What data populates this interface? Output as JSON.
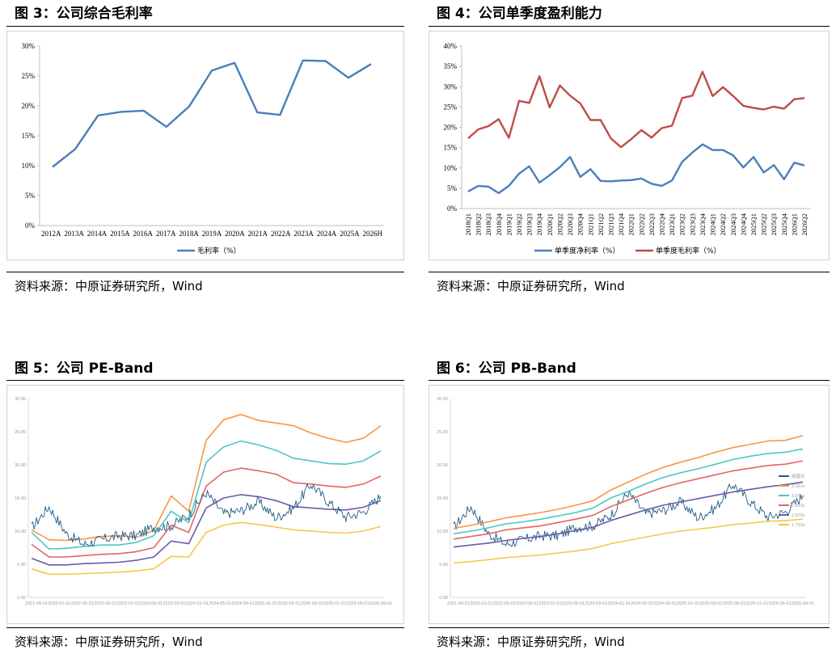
{
  "colors": {
    "blue": "#4a7ebb",
    "red": "#be4b48",
    "orange": "#f79646",
    "cyan": "#4bc7c4",
    "coral": "#e36566",
    "purple": "#6a5aa8",
    "yellow": "#f5c84c",
    "price": "#1f5d86"
  },
  "panels": [
    {
      "title": "图 3：公司综合毛利率",
      "source": "资料来源：中原证券研究所，Wind"
    },
    {
      "title": "图 4：公司单季度盈利能力",
      "source": "资料来源：中原证券研究所，Wind"
    },
    {
      "title": "图 5：公司 PE-Band",
      "source": "资料来源：中原证券研究所，Wind"
    },
    {
      "title": "图 6：公司 PB-Band",
      "source": "资料来源：中原证券研究所，Wind"
    }
  ],
  "chart_data": [
    {
      "type": "line",
      "title": "",
      "categories": [
        "2012A",
        "2013A",
        "2014A",
        "2015A",
        "2016A",
        "2017A",
        "2018A",
        "2019A",
        "2020A",
        "2021A",
        "2022A",
        "2023A",
        "2024A",
        "2025A",
        "2026H"
      ],
      "series": [
        {
          "name": "毛利率（%）",
          "values": [
            9.8,
            12.8,
            18.4,
            19.0,
            19.2,
            16.5,
            19.9,
            25.9,
            27.2,
            18.9,
            18.5,
            27.6,
            27.5,
            24.7,
            27.0
          ]
        }
      ],
      "yticks": [
        "0%",
        "5%",
        "10%",
        "15%",
        "20%",
        "25%",
        "30%"
      ],
      "ylim": [
        0,
        30
      ],
      "grid": false,
      "legend": "bottom"
    },
    {
      "type": "line",
      "title": "",
      "categories": [
        "2018Q1",
        "2018Q2",
        "2018Q3",
        "2018Q4",
        "2019Q1",
        "2019Q2",
        "2019Q3",
        "2019Q4",
        "2020Q1",
        "2020Q2",
        "2020Q3",
        "2020Q4",
        "2021Q1",
        "2021Q2",
        "2021Q3",
        "2021Q4",
        "2022Q1",
        "2022Q2",
        "2022Q3",
        "2022Q4",
        "2023Q1",
        "2023Q2",
        "2023Q3",
        "2023Q4",
        "2024Q1",
        "2024Q2",
        "2024Q3",
        "2024Q4",
        "2025Q1",
        "2025Q2",
        "2025Q3",
        "2025Q4",
        "2026Q1",
        "2026Q2"
      ],
      "series": [
        {
          "name": "单季度净利率（%）",
          "values": [
            4.2,
            5.6,
            5.4,
            3.8,
            5.6,
            8.6,
            10.4,
            6.4,
            8.2,
            10.2,
            12.7,
            7.8,
            9.7,
            6.8,
            6.7,
            6.9,
            7.0,
            7.4,
            6.1,
            5.6,
            6.9,
            11.5,
            13.8,
            15.8,
            14.4,
            14.4,
            13.1,
            10.1,
            12.7,
            8.9,
            10.7,
            7.2,
            11.3,
            10.6
          ]
        },
        {
          "name": "单季度毛利率（%）",
          "values": [
            17.3,
            19.5,
            20.3,
            22.0,
            17.4,
            26.5,
            26.0,
            32.6,
            24.9,
            30.3,
            27.8,
            25.9,
            21.8,
            21.8,
            17.3,
            15.1,
            17.1,
            19.3,
            17.5,
            19.8,
            20.4,
            27.2,
            27.8,
            33.7,
            27.7,
            29.9,
            27.7,
            25.3,
            24.8,
            24.4,
            25.1,
            24.6,
            26.9,
            27.2
          ]
        }
      ],
      "yticks": [
        "0%",
        "5%",
        "10%",
        "15%",
        "20%",
        "25%",
        "30%",
        "35%",
        "40%"
      ],
      "ylim": [
        0,
        40
      ],
      "grid": false,
      "legend": "bottom"
    },
    {
      "type": "line",
      "title": "",
      "xticks": [
        "2021-09-01",
        "2022-01-01",
        "2022-05-01",
        "2022-09-01",
        "2023-01-01",
        "2023-05-01",
        "2023-09-01",
        "2024-01-01",
        "2024-05-01",
        "2024-09-01",
        "2025-01-01",
        "2025-05-01",
        "2025-09-01",
        "2026-01-01",
        "2026-05-01",
        "2026-09-01"
      ],
      "yticks": [
        "0.00",
        "5.00",
        "10.00",
        "15.00",
        "20.00",
        "25.00",
        "30.00"
      ],
      "ylim": [
        0,
        30
      ],
      "legend": "none",
      "series": [
        {
          "name": "",
          "values": [
            10.2,
            8.7,
            8.6,
            8.8,
            9.2,
            9.3,
            9.1,
            10.1,
            15.3,
            13.0,
            23.7,
            26.8,
            27.6,
            26.7,
            26.3,
            25.9,
            24.8,
            24.0,
            23.4,
            24.0,
            25.9
          ]
        },
        {
          "name": "",
          "values": [
            9.8,
            7.3,
            7.4,
            7.7,
            7.9,
            7.9,
            8.3,
            9.3,
            13.0,
            11.3,
            20.4,
            22.7,
            23.6,
            23.0,
            22.2,
            21.0,
            20.6,
            20.2,
            20.1,
            20.6,
            22.1
          ]
        },
        {
          "name": "",
          "values": [
            8.0,
            6.1,
            6.1,
            6.3,
            6.5,
            6.6,
            6.9,
            7.5,
            10.9,
            9.8,
            16.8,
            18.9,
            19.5,
            19.1,
            18.6,
            17.3,
            17.1,
            16.8,
            16.6,
            17.1,
            18.3
          ]
        },
        {
          "name": "",
          "values": [
            5.9,
            4.9,
            4.9,
            5.1,
            5.2,
            5.3,
            5.6,
            6.1,
            8.5,
            8.1,
            13.5,
            15.0,
            15.5,
            15.2,
            14.6,
            13.7,
            13.5,
            13.3,
            13.2,
            13.6,
            14.6
          ]
        },
        {
          "name": "",
          "values": [
            4.3,
            3.5,
            3.5,
            3.6,
            3.7,
            3.8,
            4.0,
            4.3,
            6.2,
            6.1,
            9.8,
            10.9,
            11.3,
            11.0,
            10.6,
            10.2,
            10.0,
            9.8,
            9.7,
            10.0,
            10.7
          ]
        },
        {
          "name": "",
          "values": [
            10.5,
            13.7,
            9.6,
            8.0,
            8.7,
            9.3,
            9.3,
            10.6,
            10.8,
            12.4,
            15.8,
            12.6,
            13.1,
            14.4,
            12.0,
            13.5,
            17.1,
            14.4,
            12.1,
            12.9,
            15.3
          ]
        }
      ]
    },
    {
      "type": "line",
      "title": "",
      "xticks": [
        "2021-09-01",
        "2022-01-01",
        "2022-05-01",
        "2022-09-01",
        "2023-01-01",
        "2023-05-01",
        "2023-09-01",
        "2024-01-01",
        "2024-05-01",
        "2024-09-01",
        "2025-01-01",
        "2025-05-01",
        "2025-09-01",
        "2026-01-01",
        "2026-05-01",
        "2026-09-01"
      ],
      "yticks": [
        "0.00",
        "5.00",
        "10.00",
        "15.00",
        "20.00",
        "25.00",
        "30.00"
      ],
      "ylim": [
        0,
        30
      ],
      "legend": "right",
      "legend_entries": [
        "收盘价",
        "3.321x",
        "3.071x",
        "2.821x",
        "2.572x",
        "1.722x"
      ],
      "series": [
        {
          "name": "收盘价",
          "values": [
            10.5,
            13.7,
            9.6,
            8.0,
            8.7,
            9.3,
            9.3,
            10.6,
            10.8,
            12.4,
            15.8,
            12.6,
            13.1,
            14.4,
            12.0,
            13.5,
            17.1,
            14.4,
            12.1,
            12.9,
            15.3
          ]
        },
        {
          "name": "3.321x",
          "values": [
            10.4,
            10.9,
            11.4,
            12.0,
            12.4,
            12.8,
            13.3,
            13.9,
            14.6,
            16.2,
            17.4,
            18.6,
            19.6,
            20.4,
            21.1,
            21.9,
            22.6,
            23.1,
            23.6,
            23.7,
            24.4
          ]
        },
        {
          "name": "3.071x",
          "values": [
            9.6,
            10.0,
            10.5,
            11.1,
            11.4,
            11.8,
            12.3,
            12.8,
            13.5,
            15.0,
            16.0,
            17.1,
            18.1,
            18.8,
            19.4,
            20.1,
            20.8,
            21.3,
            21.7,
            21.9,
            22.4
          ]
        },
        {
          "name": "2.821x",
          "values": [
            8.8,
            9.2,
            9.6,
            10.2,
            10.5,
            10.8,
            11.3,
            11.8,
            12.4,
            13.7,
            14.7,
            15.7,
            16.6,
            17.3,
            17.9,
            18.5,
            19.1,
            19.5,
            19.9,
            20.1,
            20.6
          ]
        },
        {
          "name": "2.572x",
          "values": [
            7.6,
            7.9,
            8.2,
            8.6,
            8.9,
            9.2,
            9.6,
            10.1,
            10.6,
            11.6,
            12.4,
            13.2,
            13.9,
            14.4,
            14.9,
            15.4,
            15.9,
            16.3,
            16.7,
            17.0,
            17.4
          ]
        },
        {
          "name": "1.722x",
          "values": [
            5.2,
            5.4,
            5.7,
            6.0,
            6.2,
            6.4,
            6.7,
            7.0,
            7.4,
            8.1,
            8.6,
            9.1,
            9.6,
            10.0,
            10.3,
            10.6,
            11.0,
            11.2,
            11.5,
            11.6,
            11.8
          ]
        }
      ]
    }
  ]
}
